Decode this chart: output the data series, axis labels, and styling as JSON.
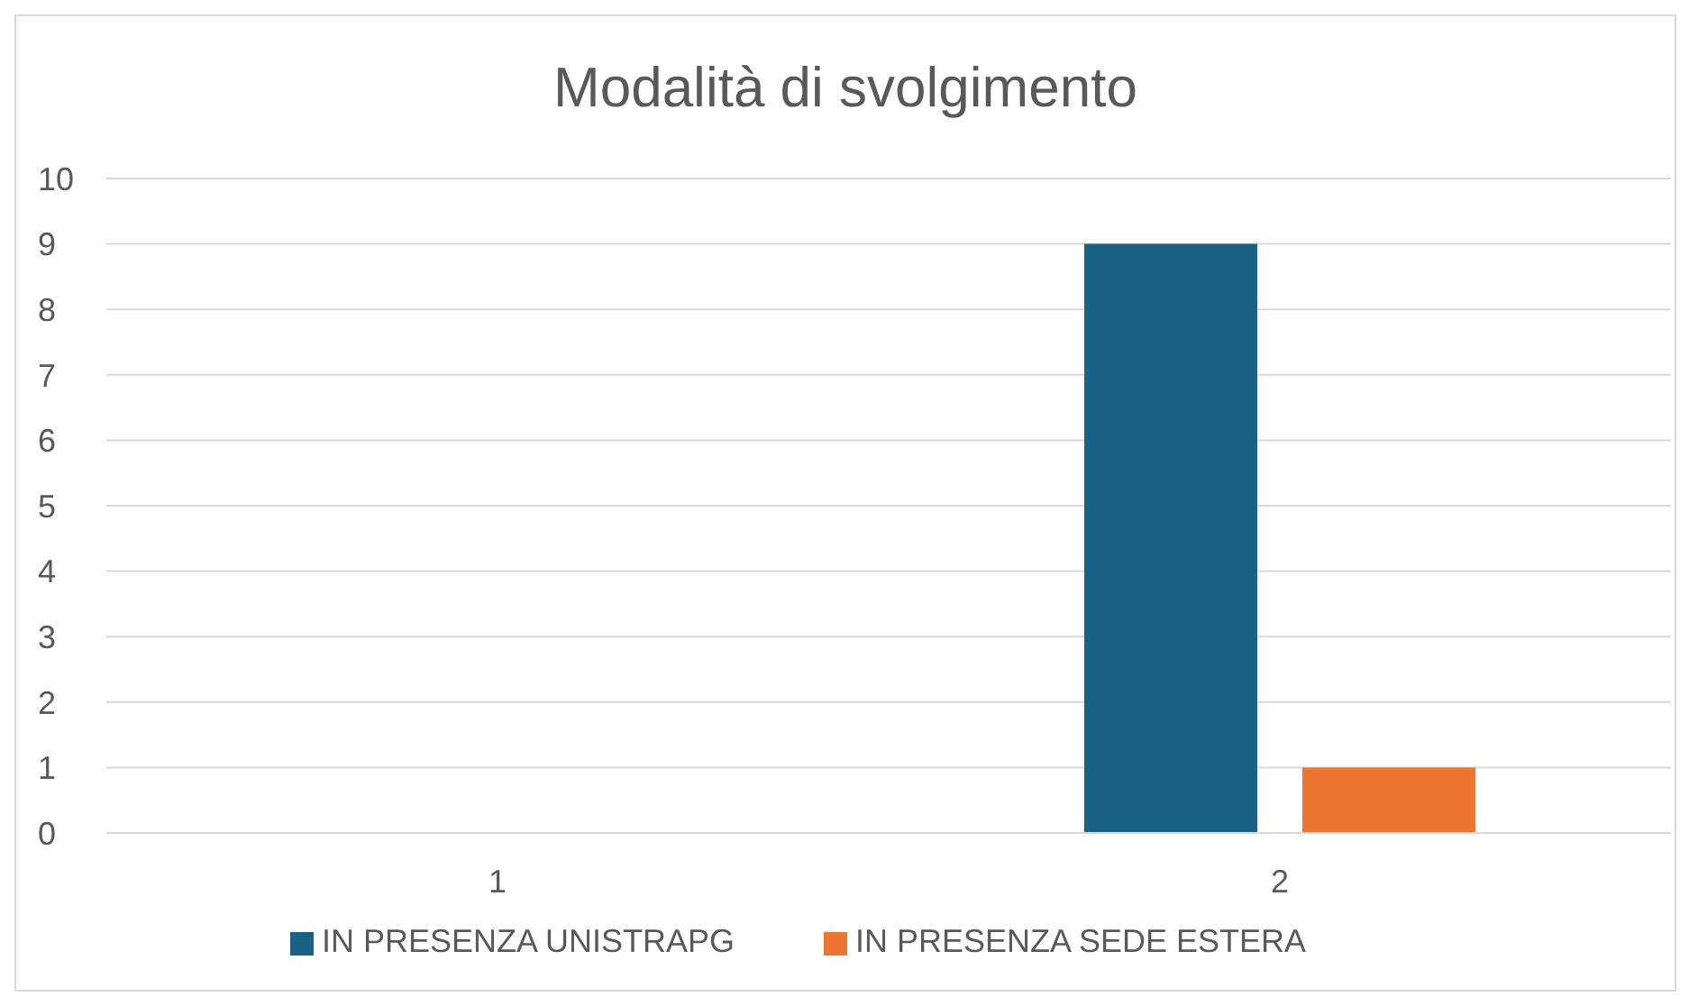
{
  "chart_data": {
    "type": "bar",
    "title": "Modalità di svolgimento",
    "categories": [
      "1",
      "2"
    ],
    "series": [
      {
        "name": "IN PRESENZA UNISTRAPG",
        "color": "#1a6186",
        "values": [
          0,
          9
        ]
      },
      {
        "name": "IN PRESENZA SEDE ESTERA",
        "color": "#ed7532",
        "values": [
          0,
          1
        ]
      }
    ],
    "ylim": [
      0,
      10
    ],
    "yticks": [
      0,
      1,
      2,
      3,
      4,
      5,
      6,
      7,
      8,
      9,
      10
    ],
    "grid": "y",
    "legend": "bottom"
  }
}
